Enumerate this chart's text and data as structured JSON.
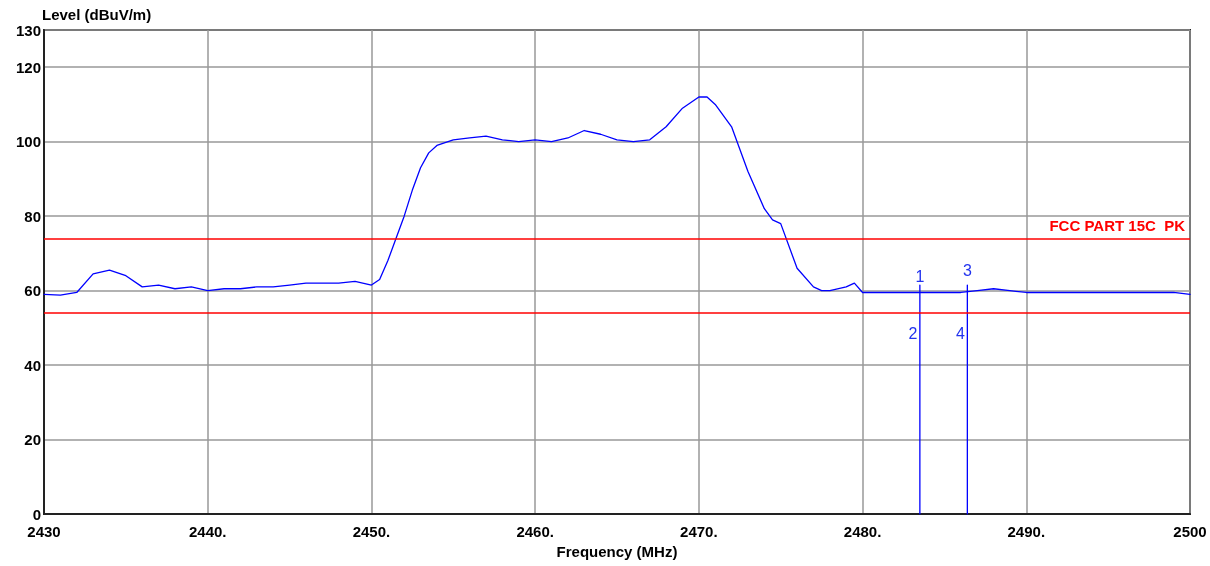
{
  "chart_data": {
    "type": "line",
    "xlabel": "Frequency (MHz)",
    "ylabel": "Level (dBuV/m)",
    "xlim": [
      2430,
      2500
    ],
    "ylim": [
      0,
      130
    ],
    "xticks": [
      2430,
      {
        "value": 2440,
        "label": "2440."
      },
      {
        "value": 2450,
        "label": "2450."
      },
      {
        "value": 2460,
        "label": "2460."
      },
      {
        "value": 2470,
        "label": "2470."
      },
      {
        "value": 2480,
        "label": "2480."
      },
      {
        "value": 2490,
        "label": "2490."
      },
      2500
    ],
    "yticks": [
      0,
      20,
      40,
      60,
      80,
      100,
      120,
      130
    ],
    "grid": true,
    "marker": "none",
    "line_style": "solid",
    "series": [
      {
        "color": "#0000ff",
        "x": [
          2430,
          2431,
          2432,
          2433,
          2434,
          2435,
          2436,
          2437,
          2438,
          2439,
          2440,
          2441,
          2442,
          2443,
          2444,
          2445,
          2446,
          2447,
          2448,
          2449,
          2450,
          2450.5,
          2451,
          2451.5,
          2452,
          2452.5,
          2453,
          2453.5,
          2454,
          2455,
          2456,
          2457,
          2458,
          2459,
          2460,
          2461,
          2462,
          2463,
          2464,
          2465,
          2466,
          2467,
          2468,
          2469,
          2470,
          2470.5,
          2471,
          2472,
          2473,
          2474,
          2474.5,
          2475,
          2476,
          2477,
          2477.5,
          2478,
          2479,
          2479.5,
          2480,
          2481,
          2482,
          2483,
          2484,
          2485,
          2486,
          2487,
          2488,
          2489,
          2490,
          2491,
          2492,
          2493,
          2494,
          2495,
          2496,
          2497,
          2498,
          2499,
          2500
        ],
        "values": [
          59,
          58.8,
          59.5,
          64.5,
          65.5,
          64,
          61,
          61.5,
          60.5,
          61,
          60,
          60.5,
          60.5,
          61,
          61,
          61.5,
          62,
          62,
          62,
          62.5,
          61.5,
          63,
          68,
          74,
          80,
          87,
          93,
          97,
          99,
          100.5,
          101,
          101.5,
          100.5,
          100,
          100.5,
          100,
          101,
          103,
          102,
          100.5,
          100,
          100.5,
          104,
          109,
          112,
          112,
          110,
          104,
          92,
          82,
          79,
          78,
          66,
          61,
          60,
          60,
          61,
          62,
          59.5,
          59.5,
          59.5,
          59.5,
          59.5,
          59.5,
          59.5,
          60,
          60.5,
          60,
          59.5,
          59.5,
          59.5,
          59.5,
          59.5,
          59.5,
          59.5,
          59.5,
          59.5,
          59.5,
          59
        ]
      },
      {
        "color": "#0000ff",
        "x": [
          2483.5,
          2483.5
        ],
        "values": [
          0,
          61.5
        ]
      },
      {
        "color": "#0000ff",
        "x": [
          2486.4,
          2486.4
        ],
        "values": [
          0,
          61.5
        ]
      }
    ],
    "ref_lines": [
      {
        "axis": "y",
        "value": 74,
        "label": "FCC PART 15C  PK",
        "color": "#ff0000"
      },
      {
        "axis": "y",
        "value": 54,
        "label": null,
        "color": "#ff0000"
      }
    ],
    "annotations": [
      "1",
      "2",
      "3",
      "4"
    ]
  }
}
